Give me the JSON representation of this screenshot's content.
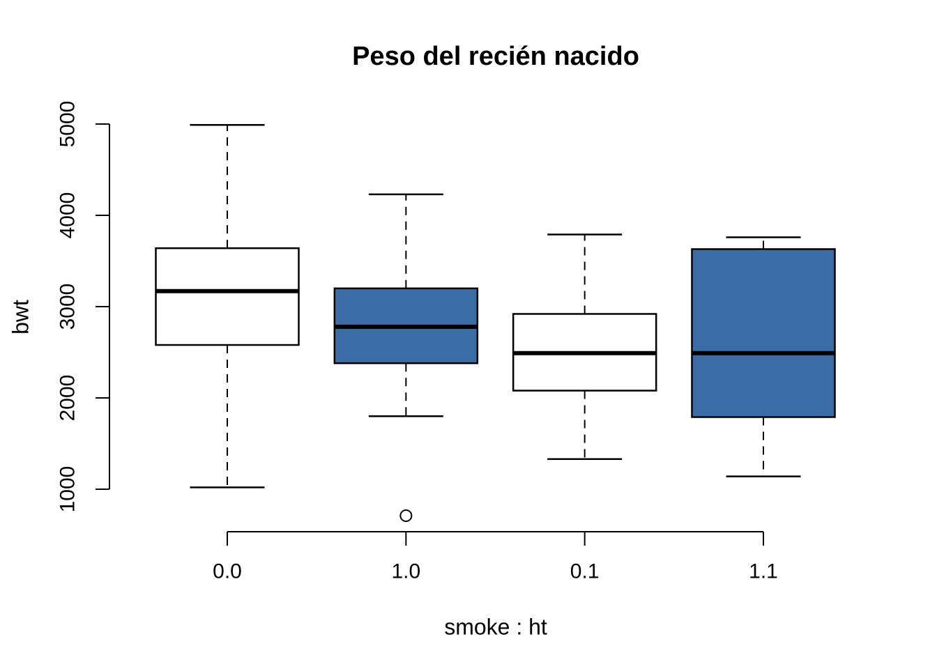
{
  "chart_data": {
    "type": "boxplot",
    "title": "Peso del recién nacido",
    "xlabel": "smoke : ht",
    "ylabel": "bwt",
    "ylim": [
      1000,
      5000
    ],
    "y_ticks": [
      1000,
      2000,
      3000,
      4000,
      5000
    ],
    "grid": false,
    "legend": "none",
    "categories": [
      "0.0",
      "1.0",
      "0.1",
      "1.1"
    ],
    "series": [
      {
        "category": "0.0",
        "fill": "#FFFFFF",
        "whisker_low": 1020,
        "q1": 2580,
        "median": 3170,
        "q3": 3640,
        "whisker_high": 4990,
        "outliers": []
      },
      {
        "category": "1.0",
        "fill": "#3A6DA6",
        "whisker_low": 1800,
        "q1": 2380,
        "median": 2780,
        "q3": 3200,
        "whisker_high": 4230,
        "outliers": [
          710
        ]
      },
      {
        "category": "0.1",
        "fill": "#FFFFFF",
        "whisker_low": 1330,
        "q1": 2080,
        "median": 2490,
        "q3": 2920,
        "whisker_high": 3790,
        "outliers": []
      },
      {
        "category": "1.1",
        "fill": "#3A6DA6",
        "whisker_low": 1140,
        "q1": 1790,
        "median": 2490,
        "q3": 3630,
        "whisker_high": 3760,
        "outliers": []
      }
    ],
    "colors": {
      "highlight_fill": "#3A6DA6",
      "default_fill": "#FFFFFF",
      "stroke": "#000000",
      "background": "#FFFFFF"
    }
  }
}
